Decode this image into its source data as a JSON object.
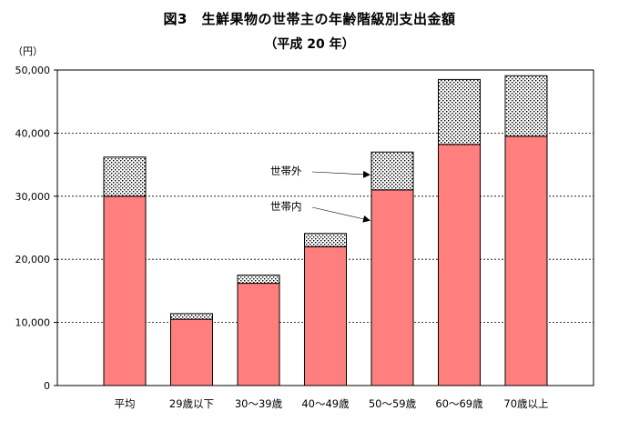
{
  "chart_data": {
    "type": "bar",
    "stacked": true,
    "title": "図3　生鮮果物の世帯主の年齢階級別支出金額",
    "subtitle": "（平成 20 年）",
    "ylabel": "（円）",
    "xlabel": "",
    "ylim": [
      0,
      50000
    ],
    "yticks": [
      0,
      10000,
      20000,
      30000,
      40000,
      50000
    ],
    "ytick_labels": [
      "0",
      "10,000",
      "20,000",
      "30,000",
      "40,000",
      "50,000"
    ],
    "grid": "dashed-horizontal",
    "categories": [
      "平均",
      "29歳以下",
      "30～39歳",
      "40～49歳",
      "50～59歳",
      "60～69歳",
      "70歳以上"
    ],
    "series": [
      {
        "name": "世帯内",
        "values": [
          30000,
          10500,
          16200,
          22000,
          31000,
          38200,
          39500
        ],
        "color": "#ff7f7f",
        "pattern": "solid"
      },
      {
        "name": "世帯外",
        "values": [
          6200,
          900,
          1300,
          2100,
          6000,
          10300,
          9600
        ],
        "color": "#ffffff",
        "pattern": "dots"
      }
    ],
    "annotations": [
      {
        "text": "世帯外",
        "target_series": "世帯外",
        "target_category": "50～59歳"
      },
      {
        "text": "世帯内",
        "target_series": "世帯内",
        "target_category": "50～59歳"
      }
    ]
  }
}
